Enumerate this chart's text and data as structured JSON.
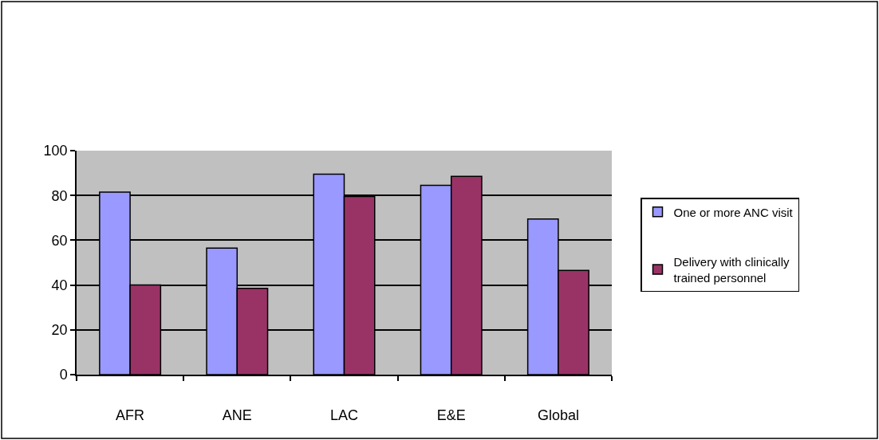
{
  "chart_data": {
    "type": "bar",
    "categories": [
      "AFR",
      "ANE",
      "LAC",
      "E&E",
      "Global"
    ],
    "series": [
      {
        "name": "One or more ANC visit",
        "color": "#9999ff",
        "values": [
          81.5,
          56.5,
          89.5,
          84.5,
          69.5
        ]
      },
      {
        "name": "Delivery with clinically trained personnel",
        "color": "#993366",
        "values": [
          40,
          38.5,
          79.5,
          88.5,
          46.5
        ]
      }
    ],
    "ylim": [
      0,
      100
    ],
    "yticks": [
      0,
      20,
      40,
      60,
      80,
      100
    ],
    "grid": "y",
    "legend": "right"
  }
}
